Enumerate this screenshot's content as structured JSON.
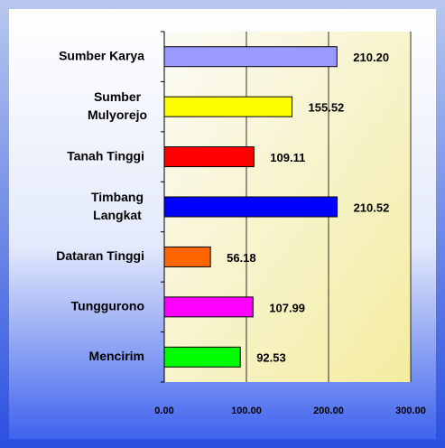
{
  "chart_data": {
    "type": "bar",
    "orientation": "horizontal",
    "categories": [
      "Sumber Karya",
      "Sumber Mulyorejo",
      "Tanah Tinggi",
      "Timbang Langkat",
      "Dataran Tinggi",
      "Tunggurono",
      "Mencirim"
    ],
    "values": [
      210.2,
      155.52,
      109.11,
      210.52,
      56.18,
      107.99,
      92.53
    ],
    "value_labels": [
      "210.20",
      "155.52",
      "109.11",
      "210.52",
      "56.18",
      "107.99",
      "92.53"
    ],
    "colors": [
      "#9999ff",
      "#ffff00",
      "#ff0000",
      "#0000ff",
      "#ff6600",
      "#ff00ff",
      "#00ff00"
    ],
    "xlim": [
      0,
      300
    ],
    "xticks": [
      {
        "value": 0,
        "label": "0.00"
      },
      {
        "value": 100,
        "label": "100.00"
      },
      {
        "value": 200,
        "label": "200.00"
      },
      {
        "value": 300,
        "label": "300.00"
      }
    ],
    "grid": true
  }
}
